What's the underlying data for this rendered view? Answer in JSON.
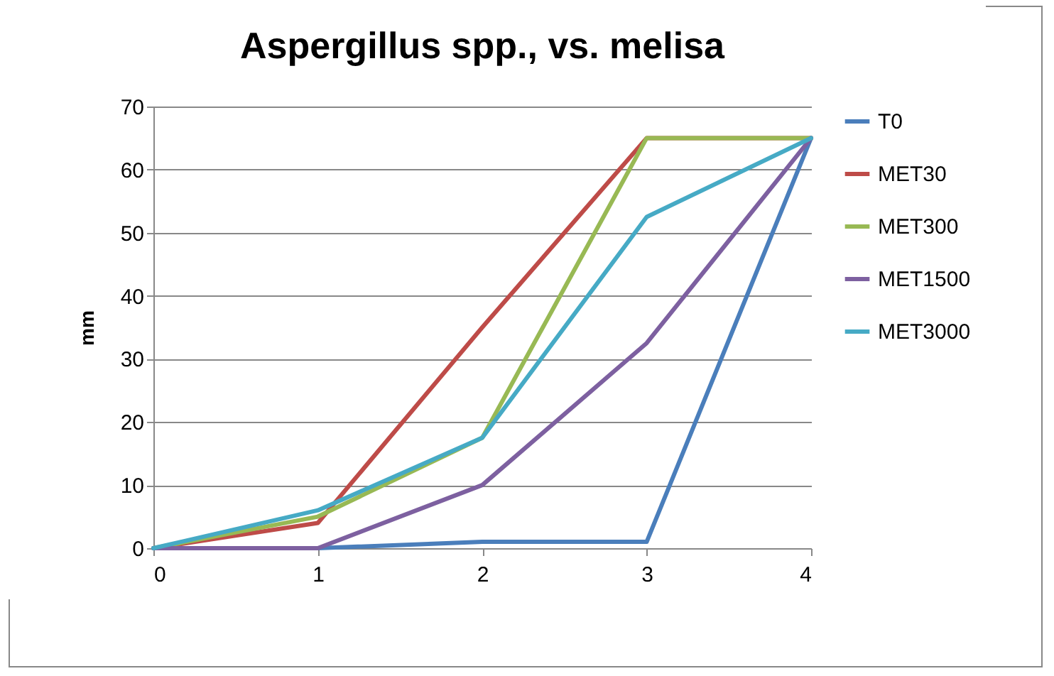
{
  "chart_data": {
    "type": "line",
    "title": "Aspergillus spp., vs. melisa",
    "ylabel": "mm",
    "x": [
      0,
      1,
      2,
      3,
      4
    ],
    "xlim": [
      0,
      4
    ],
    "xticks": [
      0,
      1,
      2,
      3,
      4
    ],
    "ylim": [
      0,
      70
    ],
    "yticks": [
      0,
      10,
      20,
      30,
      40,
      50,
      60,
      70
    ],
    "grid": "y",
    "legend": "right",
    "marker": "none",
    "series": [
      {
        "name": "T0",
        "color": "#4a7ebb",
        "values": [
          0,
          0,
          1,
          1,
          65
        ]
      },
      {
        "name": "MET30",
        "color": "#be4b48",
        "values": [
          0,
          4,
          35,
          65,
          65
        ]
      },
      {
        "name": "MET300",
        "color": "#98b954",
        "values": [
          0,
          5,
          17.5,
          65,
          65
        ]
      },
      {
        "name": "MET1500",
        "color": "#7d60a0",
        "values": [
          0,
          0,
          10,
          32.5,
          65
        ]
      },
      {
        "name": "MET3000",
        "color": "#46aac5",
        "values": [
          0,
          6,
          17.5,
          52.5,
          65
        ]
      }
    ]
  }
}
